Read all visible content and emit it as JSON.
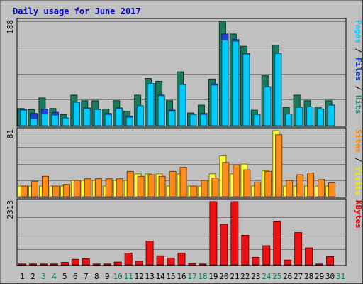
{
  "chart_data": {
    "type": "bar",
    "title": "Daily usage for June 2017",
    "categories": [
      "1",
      "2",
      "3",
      "4",
      "5",
      "6",
      "7",
      "8",
      "9",
      "10",
      "11",
      "12",
      "13",
      "14",
      "15",
      "16",
      "17",
      "18",
      "19",
      "20",
      "21",
      "22",
      "23",
      "24",
      "25",
      "26",
      "27",
      "28",
      "29",
      "30",
      "31"
    ],
    "weekend_days": [
      "3",
      "4",
      "10",
      "11",
      "17",
      "18",
      "24",
      "25",
      "31"
    ],
    "panels": [
      {
        "id": "top",
        "max_label": "188",
        "ylim": [
          0,
          188
        ],
        "axis_labels": [
          {
            "text": "Pages",
            "color": "#00ccff"
          },
          {
            "text": " / ",
            "color": "#000000"
          },
          {
            "text": "Files",
            "color": "#0044dd"
          },
          {
            "text": " / ",
            "color": "#000000"
          },
          {
            "text": "Hits",
            "color": "#228877"
          }
        ],
        "series": [
          {
            "name": "Hits",
            "color": "#1a7a5e",
            "values": [
              31,
              29,
              50,
              31,
              20,
              55,
              45,
              45,
              30,
              45,
              26,
              55,
              85,
              80,
              45,
              97,
              23,
              37,
              84,
              188,
              165,
              143,
              28,
              90,
              145,
              33,
              55,
              45,
              34,
              45,
              0
            ]
          },
          {
            "name": "Files",
            "color": "#1e40e0",
            "values": [
              29,
              22,
              30,
              24,
              14,
              42,
              32,
              30,
              22,
              32,
              17,
              30,
              75,
              55,
              28,
              72,
              20,
              22,
              75,
              165,
              155,
              130,
              20,
              70,
              130,
              20,
              32,
              33,
              30,
              37,
              0
            ]
          },
          {
            "name": "Pages",
            "color": "#00ccff",
            "values": [
              28,
              12,
              22,
              19,
              14,
              42,
              31,
              29,
              20,
              31,
              15,
              36,
              76,
              54,
              26,
              74,
              20,
              20,
              73,
              154,
              152,
              129,
              20,
              70,
              130,
              21,
              33,
              34,
              30,
              37,
              0
            ]
          }
        ]
      },
      {
        "id": "middle",
        "max_label": "81",
        "ylim": [
          0,
          81
        ],
        "axis_labels": [
          {
            "text": "Sites",
            "color": "#ff8800"
          },
          {
            "text": " / ",
            "color": "#000000"
          },
          {
            "text": "Visits",
            "color": "#eeee00"
          }
        ],
        "series": [
          {
            "name": "Visits",
            "color": "#ffff33",
            "values": [
              13,
              13,
              13,
              13,
              13,
              20,
              20,
              20,
              13,
              20,
              20,
              28,
              28,
              28,
              13,
              28,
              13,
              13,
              28,
              50,
              28,
              40,
              13,
              32,
              81,
              13,
              13,
              13,
              13,
              13,
              0
            ]
          },
          {
            "name": "Sites",
            "color": "#ff8c1a",
            "values": [
              13,
              19,
              25,
              13,
              15,
              20,
              22,
              22,
              22,
              22,
              31,
              25,
              27,
              25,
              31,
              36,
              13,
              20,
              23,
              42,
              39,
              33,
              18,
              31,
              76,
              20,
              27,
              29,
              21,
              17,
              0
            ]
          }
        ]
      },
      {
        "id": "bottom",
        "max_label": "2313",
        "ylim": [
          0,
          2313
        ],
        "axis_labels": [
          {
            "text": "KBytes",
            "color": "#ee0000"
          }
        ],
        "series": [
          {
            "name": "KBytes",
            "color": "#ee1111",
            "values": [
              30,
              30,
              30,
              30,
              90,
              200,
              220,
              30,
              30,
              100,
              430,
              130,
              865,
              330,
              250,
              430,
              50,
              30,
              2313,
              1480,
              2313,
              1080,
              275,
              700,
              1600,
              175,
              1180,
              620,
              30,
              300,
              0
            ]
          }
        ]
      }
    ],
    "colors": {
      "page_bg": "#c0c0c0",
      "plot_bg": "#c0c0c0",
      "grid": "#808080",
      "title": "#0000cc",
      "weekday_label": "#000000",
      "weekend_label": "#00875a"
    }
  }
}
